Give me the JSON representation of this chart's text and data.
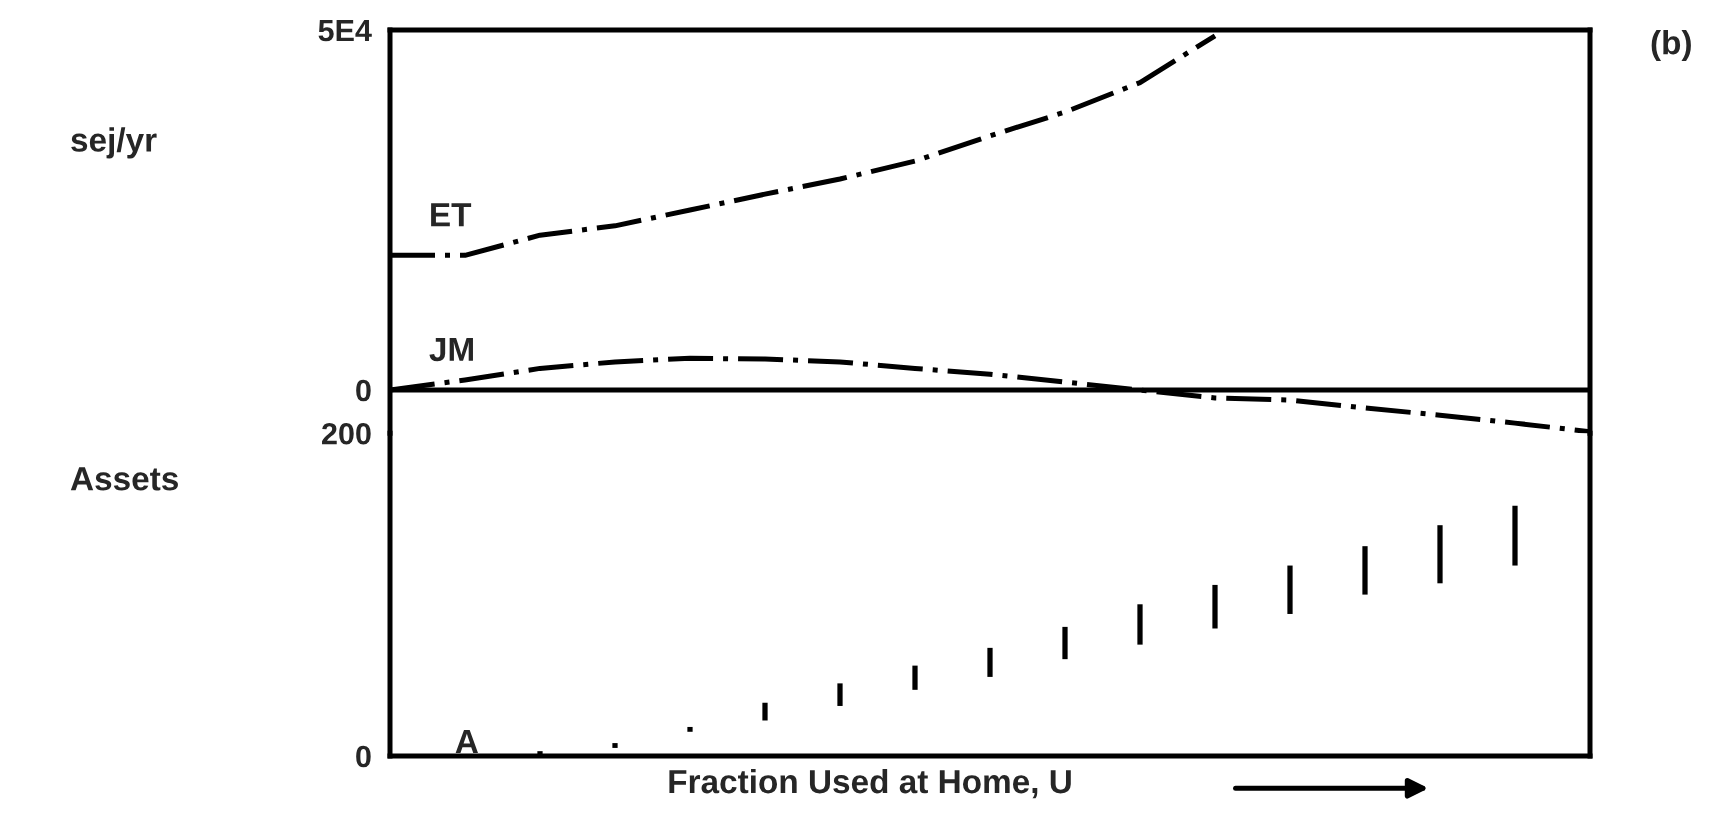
{
  "chart_data": [
    {
      "type": "line",
      "ylabel": "sej/yr",
      "categories": [
        null,
        null,
        null,
        null,
        null,
        null,
        null,
        null,
        null,
        null,
        null,
        null,
        null,
        null,
        null,
        null,
        null
      ],
      "series": [
        {
          "name": "ET",
          "color": "#000000",
          "values": [
            18700,
            18700,
            21500,
            22800,
            25000,
            27200,
            29300,
            31800,
            35300,
            38600,
            42700,
            49200,
            null,
            null,
            null,
            null,
            null
          ]
        },
        {
          "name": "JM",
          "color": "#000000",
          "values": [
            0,
            1400,
            3000,
            3900,
            4400,
            4300,
            3900,
            3000,
            2200,
            1100,
            0,
            -1100,
            -1400,
            -2500,
            -3500,
            -4600,
            -5800
          ]
        }
      ],
      "ylim": [
        -6000,
        50000
      ],
      "yticks": [
        0,
        {
          "value": 50000,
          "label": "5E4"
        }
      ],
      "ref_lines": [
        {
          "axis": "y",
          "value": 0,
          "color": "#000000",
          "line_style": "solid"
        }
      ],
      "tick_labels": "y",
      "line_style": "dashed",
      "marker": "none",
      "grid": false,
      "legend": false,
      "annotations": [
        "(b)"
      ]
    },
    {
      "type": "bar",
      "ylabel": "Assets",
      "xlabel": "Fraction Used at Home, U",
      "categories": [
        null,
        null,
        null,
        null,
        null,
        null,
        null,
        null,
        null,
        null,
        null,
        null,
        null,
        null,
        null,
        null,
        null
      ],
      "series": [
        {
          "name": "A",
          "color": "#000000",
          "values": [
            null,
            null,
            2,
            3,
            3,
            11,
            14,
            15,
            18,
            20,
            25,
            27,
            30,
            30,
            36,
            37,
            null
          ],
          "base": [
            null,
            null,
            1,
            5,
            15,
            22,
            31,
            41,
            49,
            60,
            69,
            79,
            88,
            100,
            107,
            118,
            null
          ]
        }
      ],
      "ylim": [
        0,
        200
      ],
      "yticks": [
        0,
        200
      ],
      "tick_labels": "y",
      "grid": false,
      "legend": false
    }
  ]
}
